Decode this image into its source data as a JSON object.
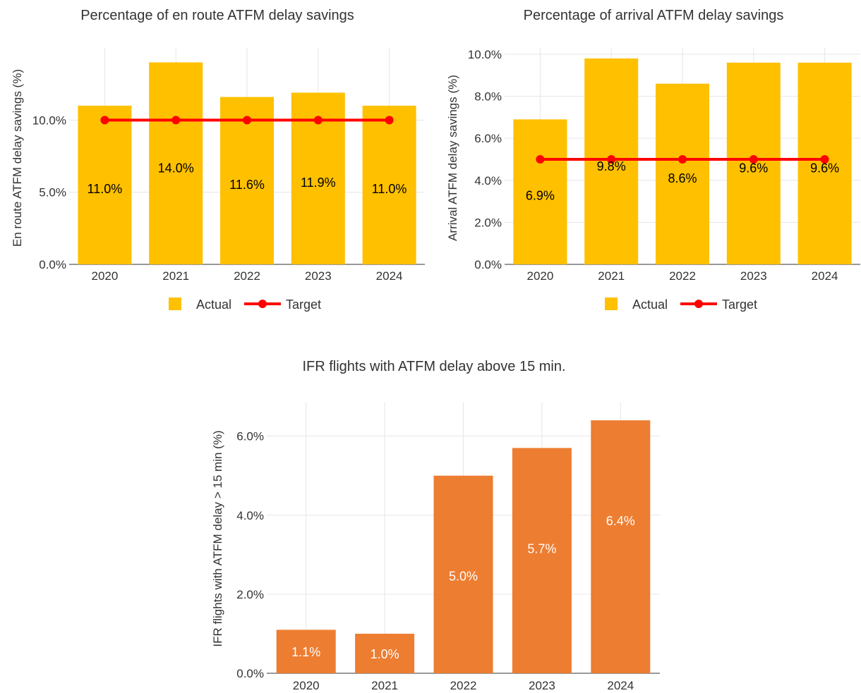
{
  "chart_data": [
    {
      "type": "bar",
      "title": "Percentage of en route ATFM delay savings",
      "ylabel": "En route ATFM delay savings (%)",
      "xlabel": "",
      "categories": [
        "2020",
        "2021",
        "2022",
        "2023",
        "2024"
      ],
      "series": [
        {
          "name": "Actual",
          "type": "bar",
          "values": [
            11.0,
            14.0,
            11.6,
            11.9,
            11.0
          ],
          "color": "#FFC000"
        },
        {
          "name": "Target",
          "type": "line",
          "values": [
            10.0,
            10.0,
            10.0,
            10.0,
            10.0
          ],
          "color": "#FF0000"
        }
      ],
      "data_labels": [
        "11.0%",
        "14.0%",
        "11.6%",
        "11.9%",
        "11.0%"
      ],
      "data_label_color": "#000000",
      "ylim": [
        0,
        15
      ],
      "yticks": [
        0,
        5,
        10
      ],
      "ytick_labels": [
        "0.0%",
        "5.0%",
        "10.0%"
      ],
      "grid": true,
      "legend": "bottom"
    },
    {
      "type": "bar",
      "title": "Percentage of arrival ATFM delay savings",
      "ylabel": "Arrival ATFM delay savings (%)",
      "xlabel": "",
      "categories": [
        "2020",
        "2021",
        "2022",
        "2023",
        "2024"
      ],
      "series": [
        {
          "name": "Actual",
          "type": "bar",
          "values": [
            6.9,
            9.8,
            8.6,
            9.6,
            9.6
          ],
          "color": "#FFC000"
        },
        {
          "name": "Target",
          "type": "line",
          "values": [
            5.0,
            5.0,
            5.0,
            5.0,
            5.0
          ],
          "color": "#FF0000"
        }
      ],
      "data_labels": [
        "6.9%",
        "9.8%",
        "8.6%",
        "9.6%",
        "9.6%"
      ],
      "data_label_color": "#000000",
      "ylim": [
        0,
        10.3
      ],
      "yticks": [
        0,
        2,
        4,
        6,
        8,
        10
      ],
      "ytick_labels": [
        "0.0%",
        "2.0%",
        "4.0%",
        "6.0%",
        "8.0%",
        "10.0%"
      ],
      "grid": true,
      "legend": "bottom"
    },
    {
      "type": "bar",
      "title": "IFR flights with ATFM delay above 15 min.",
      "ylabel": "IFR flights with ATFM delay > 15 min (%)",
      "xlabel": "",
      "categories": [
        "2020",
        "2021",
        "2022",
        "2023",
        "2024"
      ],
      "series": [
        {
          "type": "bar",
          "values": [
            1.1,
            1.0,
            5.0,
            5.7,
            6.4
          ],
          "color": "#ED7D31"
        }
      ],
      "data_labels": [
        "1.1%",
        "1.0%",
        "5.0%",
        "5.7%",
        "6.4%"
      ],
      "data_label_color": "#ffffff",
      "ylim": [
        0,
        6.85
      ],
      "yticks": [
        0,
        2,
        4,
        6
      ],
      "ytick_labels": [
        "0.0%",
        "2.0%",
        "4.0%",
        "6.0%"
      ],
      "grid": true,
      "legend": "none"
    }
  ]
}
